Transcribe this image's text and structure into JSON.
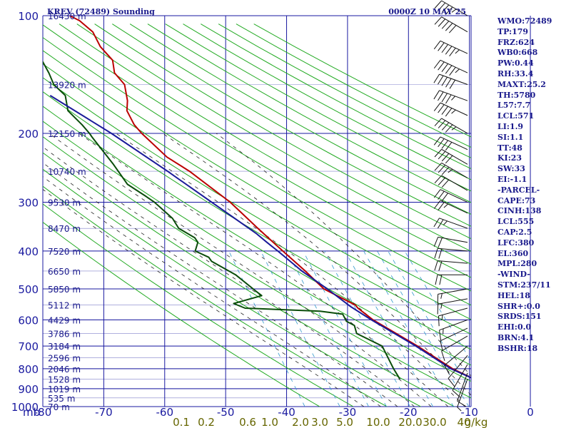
{
  "header": {
    "title": "KREV (72489) Sounding",
    "time": "0000Z 10 MAY 25"
  },
  "colors": {
    "grid": "#1a1aa0",
    "dry_adiabat": "#22aa22",
    "moist_adiabat": "#222222",
    "mixing_ratio": "#3399cc",
    "temperature": "#bb0000",
    "dewpoint": "#0a4d0a",
    "parcel": "#1a1a99",
    "text": "#1a1a8c",
    "mixing_label": "#666600"
  },
  "stats": [
    "WMO:72489",
    "TP:179",
    "FRZ:624",
    "WB0:668",
    "PW:0.44",
    "RH:33.4",
    "MAXT:25.2",
    "TH:5780",
    "L57:7.7",
    "LCL:571",
    "LI:1.9",
    "SI:1.1",
    "TT:48",
    "KI:23",
    "SW:33",
    "EI:-1.1",
    "-PARCEL-",
    "CAPE:73",
    "CINH:138",
    "LCL:555",
    "CAP:2.5",
    "LFC:380",
    "EL:360",
    "MPL:280",
    "-WIND-",
    "STM:237/11",
    "HEL:18",
    "SHR+:0.0",
    "SRDS:151",
    "EHI:0.0",
    "BRN:4.1",
    "BSHR:18"
  ],
  "chart_data": {
    "type": "line",
    "title": "KREV (72489) Sounding",
    "subtitle": "0000Z 10 MAY 25",
    "x_unit_label": "mb",
    "xlim": [
      -80,
      40
    ],
    "ylim": [
      1000,
      100
    ],
    "y_scale": "log",
    "grid": true,
    "pressure_ticks": [
      100,
      200,
      300,
      400,
      500,
      600,
      700,
      800,
      900,
      1000
    ],
    "temperature_ticks": [
      -80,
      -70,
      -60,
      -50,
      -40,
      -30,
      -20,
      -10,
      0,
      10,
      20,
      30
    ],
    "temperature_tick_labels": [
      "-80",
      "-70",
      "-60",
      "-50",
      "-40",
      "-30",
      "-20",
      "-10",
      "0",
      "10",
      "20",
      "30"
    ],
    "height_labels": [
      {
        "p": 100,
        "label": "16430 m"
      },
      {
        "p": 150,
        "label": "13920 m"
      },
      {
        "p": 200,
        "label": "12150 m"
      },
      {
        "p": 250,
        "label": "10740 m"
      },
      {
        "p": 300,
        "label": "9530 m"
      },
      {
        "p": 350,
        "label": "8470 m"
      },
      {
        "p": 400,
        "label": "7520 m"
      },
      {
        "p": 450,
        "label": "6650 m"
      },
      {
        "p": 500,
        "label": "5850 m"
      },
      {
        "p": 550,
        "label": "5112 m"
      },
      {
        "p": 600,
        "label": "4429 m"
      },
      {
        "p": 650,
        "label": "3786 m"
      },
      {
        "p": 700,
        "label": "3184 m"
      },
      {
        "p": 750,
        "label": "2596 m"
      },
      {
        "p": 800,
        "label": "2046 m"
      },
      {
        "p": 850,
        "label": "1528 m"
      },
      {
        "p": 900,
        "label": "1019 m"
      },
      {
        "p": 950,
        "label": "535 m"
      },
      {
        "p": 1000,
        "label": "70 m"
      }
    ],
    "mixing_ratio_labels": [
      "0.1",
      "0.2",
      "0.6",
      "1.0",
      "2.0",
      "3.0",
      "5.0",
      "10.0",
      "20.0",
      "30.0",
      "40",
      "g/kg"
    ],
    "dry_adiabats_K": [
      250,
      260,
      270,
      280,
      290,
      300,
      310,
      320,
      330,
      340,
      350,
      360,
      370,
      380,
      390,
      400,
      410,
      420,
      430,
      440,
      450,
      460,
      470,
      480,
      490,
      500
    ],
    "moist_adiabats_C": [
      -10,
      -5,
      0,
      5,
      10,
      15,
      20,
      25,
      30
    ],
    "mixing_ratio_lines_gkg": [
      0.4,
      1,
      2,
      3,
      5,
      8,
      12,
      16,
      20,
      28
    ],
    "series": [
      {
        "key": "temperature",
        "points": [
          {
            "p": 850,
            "t": 25.0
          },
          {
            "p": 800,
            "t": 19.5
          },
          {
            "p": 700,
            "t": 11.0
          },
          {
            "p": 600,
            "t": 0.0
          },
          {
            "p": 560,
            "t": -3.5
          },
          {
            "p": 550,
            "t": -4.0
          },
          {
            "p": 500,
            "t": -12.0
          },
          {
            "p": 450,
            "t": -16.0
          },
          {
            "p": 400,
            "t": -21.0
          },
          {
            "p": 350,
            "t": -26.5
          },
          {
            "p": 300,
            "t": -32.5
          },
          {
            "p": 250,
            "t": -42.0
          },
          {
            "p": 230,
            "t": -47.5
          },
          {
            "p": 200,
            "t": -53.0
          },
          {
            "p": 190,
            "t": -54.5
          },
          {
            "p": 175,
            "t": -55.5
          },
          {
            "p": 165,
            "t": -54.5
          },
          {
            "p": 150,
            "t": -54.0
          },
          {
            "p": 140,
            "t": -56.0
          },
          {
            "p": 130,
            "t": -55.5
          },
          {
            "p": 120,
            "t": -58.0
          },
          {
            "p": 110,
            "t": -59.0
          },
          {
            "p": 103,
            "t": -62.0
          },
          {
            "p": 100,
            "t": -64.5
          }
        ]
      },
      {
        "key": "dewpoint",
        "points": [
          {
            "p": 850,
            "t": 3.0
          },
          {
            "p": 800,
            "t": 2.0
          },
          {
            "p": 700,
            "t": 0.5
          },
          {
            "p": 650,
            "t": -6.0
          },
          {
            "p": 620,
            "t": -6.0
          },
          {
            "p": 605,
            "t": -8.0
          },
          {
            "p": 580,
            "t": -8.5
          },
          {
            "p": 570,
            "t": -15.0
          },
          {
            "p": 560,
            "t": -37.0
          },
          {
            "p": 545,
            "t": -40.0
          },
          {
            "p": 520,
            "t": -31.0
          },
          {
            "p": 505,
            "t": -32.5
          },
          {
            "p": 460,
            "t": -37.0
          },
          {
            "p": 425,
            "t": -43.0
          },
          {
            "p": 415,
            "t": -43.5
          },
          {
            "p": 400,
            "t": -47.0
          },
          {
            "p": 380,
            "t": -45.5
          },
          {
            "p": 370,
            "t": -46.0
          },
          {
            "p": 350,
            "t": -50.0
          },
          {
            "p": 330,
            "t": -51.0
          },
          {
            "p": 300,
            "t": -55.0
          },
          {
            "p": 290,
            "t": -57.0
          },
          {
            "p": 270,
            "t": -61.5
          },
          {
            "p": 240,
            "t": -64.0
          },
          {
            "p": 205,
            "t": -68.0
          },
          {
            "p": 200,
            "t": -68.5
          },
          {
            "p": 190,
            "t": -70.0
          },
          {
            "p": 175,
            "t": -73.0
          },
          {
            "p": 160,
            "t": -72.5
          },
          {
            "p": 150,
            "t": -75.0
          },
          {
            "p": 140,
            "t": -75.5
          },
          {
            "p": 130,
            "t": -76.5
          },
          {
            "p": 120,
            "t": -76.0
          },
          {
            "p": 110,
            "t": -77.0
          },
          {
            "p": 100,
            "t": -80.0
          }
        ]
      },
      {
        "key": "parcel",
        "points": [
          {
            "p": 850,
            "t": 25.0
          },
          {
            "p": 800,
            "t": 19.0
          },
          {
            "p": 700,
            "t": 10.5
          },
          {
            "p": 600,
            "t": -0.5
          },
          {
            "p": 555,
            "t": -5.5
          },
          {
            "p": 500,
            "t": -11.0
          },
          {
            "p": 450,
            "t": -17.0
          },
          {
            "p": 400,
            "t": -22.5
          },
          {
            "p": 380,
            "t": -25.0
          },
          {
            "p": 360,
            "t": -27.5
          },
          {
            "p": 300,
            "t": -38.0
          },
          {
            "p": 250,
            "t": -48.5
          },
          {
            "p": 200,
            "t": -62.0
          },
          {
            "p": 160,
            "t": -77.0
          }
        ]
      }
    ],
    "wind_barbs": [
      {
        "p": 100,
        "dir": 300,
        "kt": 45
      },
      {
        "p": 110,
        "dir": 300,
        "kt": 50
      },
      {
        "p": 125,
        "dir": 295,
        "kt": 55
      },
      {
        "p": 140,
        "dir": 295,
        "kt": 55
      },
      {
        "p": 150,
        "dir": 290,
        "kt": 50
      },
      {
        "p": 165,
        "dir": 290,
        "kt": 45
      },
      {
        "p": 180,
        "dir": 295,
        "kt": 45
      },
      {
        "p": 200,
        "dir": 300,
        "kt": 45
      },
      {
        "p": 220,
        "dir": 295,
        "kt": 40
      },
      {
        "p": 240,
        "dir": 300,
        "kt": 40
      },
      {
        "p": 260,
        "dir": 300,
        "kt": 35
      },
      {
        "p": 280,
        "dir": 300,
        "kt": 30
      },
      {
        "p": 300,
        "dir": 295,
        "kt": 30
      },
      {
        "p": 320,
        "dir": 295,
        "kt": 25
      },
      {
        "p": 350,
        "dir": 290,
        "kt": 25
      },
      {
        "p": 380,
        "dir": 280,
        "kt": 20
      },
      {
        "p": 400,
        "dir": 275,
        "kt": 20
      },
      {
        "p": 430,
        "dir": 275,
        "kt": 20
      },
      {
        "p": 460,
        "dir": 270,
        "kt": 20
      },
      {
        "p": 500,
        "dir": 260,
        "kt": 15
      },
      {
        "p": 530,
        "dir": 260,
        "kt": 15
      },
      {
        "p": 560,
        "dir": 255,
        "kt": 15
      },
      {
        "p": 600,
        "dir": 250,
        "kt": 15
      },
      {
        "p": 630,
        "dir": 245,
        "kt": 10
      },
      {
        "p": 660,
        "dir": 240,
        "kt": 10
      },
      {
        "p": 700,
        "dir": 230,
        "kt": 10
      },
      {
        "p": 740,
        "dir": 220,
        "kt": 10
      },
      {
        "p": 780,
        "dir": 210,
        "kt": 10
      },
      {
        "p": 820,
        "dir": 200,
        "kt": 10
      },
      {
        "p": 850,
        "dir": 200,
        "kt": 5
      }
    ]
  }
}
